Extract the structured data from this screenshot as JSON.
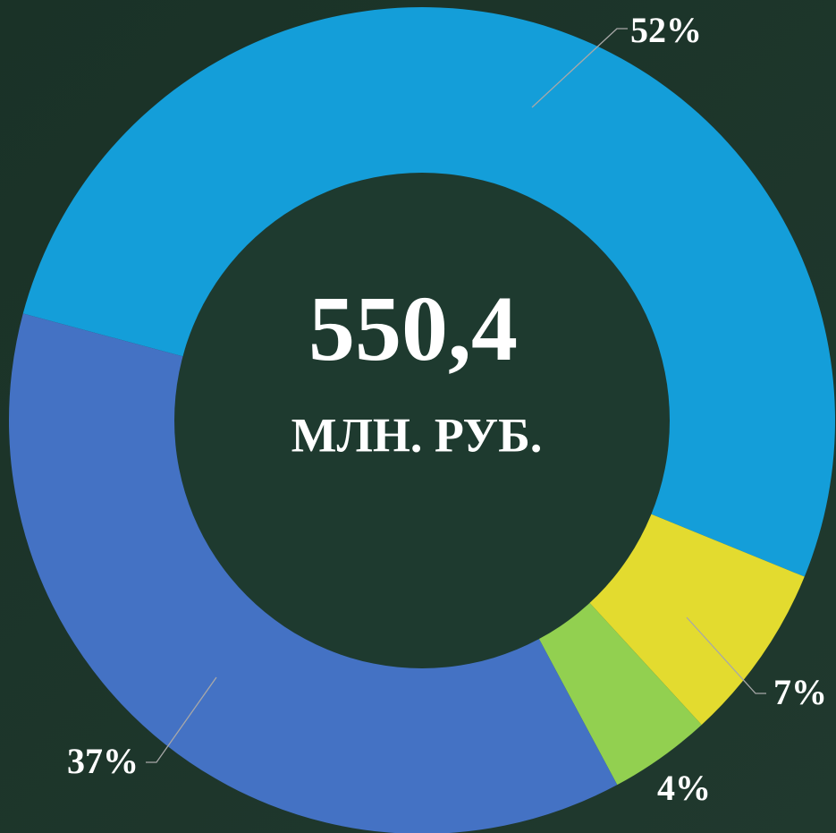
{
  "chart_data": {
    "type": "donut",
    "center_value": "550,4",
    "center_unit": "МЛН. РУБ.",
    "values": [
      52,
      7,
      4,
      37
    ],
    "value_labels": [
      "52%",
      "7%",
      "4%",
      "37%"
    ],
    "colors": [
      "#149ed9",
      "#e3db2f",
      "#92d050",
      "#4472c4"
    ]
  }
}
